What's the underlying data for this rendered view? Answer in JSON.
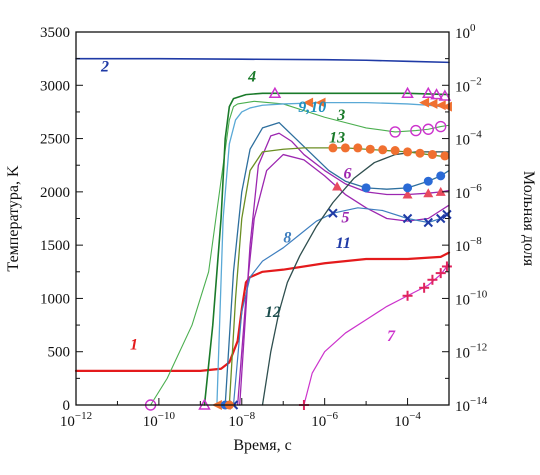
{
  "chart_data": {
    "type": "line",
    "title": "",
    "xlabel": "Время, с",
    "ylabel": "Температура, K",
    "y2label": "Мольная доля",
    "x_scale": "log",
    "xlim_exp": [
      -12,
      -3
    ],
    "ylim": [
      0,
      3500
    ],
    "y2_scale": "log",
    "y2lim_exp": [
      -14,
      0
    ],
    "x_ticks": [
      {
        "base": "10",
        "exp": "−12"
      },
      {
        "base": "10",
        "exp": "−10"
      },
      {
        "base": "10",
        "exp": "−8"
      },
      {
        "base": "10",
        "exp": "−6"
      },
      {
        "base": "10",
        "exp": "−4"
      }
    ],
    "x_tick_exps": [
      -12,
      -10,
      -8,
      -6,
      -4
    ],
    "y_ticks": [
      "0",
      "500",
      "1000",
      "1500",
      "2000",
      "2500",
      "3000",
      "3500"
    ],
    "y_tick_values": [
      0,
      500,
      1000,
      1500,
      2000,
      2500,
      3000,
      3500
    ],
    "y2_ticks": [
      {
        "base": "10",
        "exp": "0"
      },
      {
        "base": "10",
        "exp": "−2"
      },
      {
        "base": "10",
        "exp": "−4"
      },
      {
        "base": "10",
        "exp": "−6"
      },
      {
        "base": "10",
        "exp": "−8"
      },
      {
        "base": "10",
        "exp": "−10"
      },
      {
        "base": "10",
        "exp": "−12"
      },
      {
        "base": "10",
        "exp": "−14"
      }
    ],
    "y2_tick_exps": [
      0,
      -2,
      -4,
      -6,
      -8,
      -10,
      -12,
      -14
    ],
    "grid": false,
    "legend": "none",
    "series": [
      {
        "label": "1",
        "axis": "left",
        "color": "#e41a1c",
        "width": 2.2,
        "marker": "none",
        "x": [
          -12,
          -9,
          -8.5,
          -8.3,
          -8.1,
          -8,
          -7.9,
          -7.8,
          -7.5,
          -7,
          -6,
          -5,
          -4,
          -3.2,
          -3
        ],
        "y": [
          320,
          320,
          340,
          400,
          600,
          900,
          1150,
          1200,
          1250,
          1270,
          1330,
          1370,
          1370,
          1390,
          1430
        ],
        "label_at": {
          "x": -10.6,
          "y": 520
        }
      },
      {
        "label": "2",
        "axis": "left",
        "color": "#1f3aa6",
        "width": 1.6,
        "marker": "none",
        "x": [
          -12,
          -10,
          -8,
          -6,
          -5,
          -4,
          -3
        ],
        "y": [
          3250,
          3250,
          3245,
          3240,
          3235,
          3225,
          3215
        ],
        "label_at": {
          "x": -11.3,
          "y": 3130
        }
      },
      {
        "label": "3",
        "axis": "right",
        "color": "#4caf50",
        "width": 1.1,
        "marker": "circle_open",
        "marker_color": "#cc33cc",
        "x": [
          -10.2,
          -9.8,
          -9.2,
          -8.8,
          -8.45,
          -8.3,
          -8.2,
          -8.1,
          -7.7,
          -7,
          -6,
          -5,
          -4.3,
          -3.8,
          -3.5,
          -3.2,
          -3
        ],
        "y": [
          -14,
          -13,
          -11,
          -9,
          -5,
          -3.3,
          -2.8,
          -2.7,
          -2.6,
          -2.7,
          -3.2,
          -3.6,
          -3.75,
          -3.7,
          -3.65,
          -3.55,
          -3.5
        ],
        "marker_x": [
          -10.2,
          -4.3,
          -3.8,
          -3.5,
          -3.2
        ],
        "marker_y": [
          -14,
          -3.75,
          -3.7,
          -3.65,
          -3.55
        ],
        "label_color": "#1a7a2a",
        "label_at": {
          "x": -5.6,
          "y2": -3.3
        }
      },
      {
        "label": "4",
        "axis": "right",
        "color": "#1a7a2a",
        "width": 1.6,
        "marker": "triangle_open",
        "marker_color": "#cc33cc",
        "x": [
          -8.9,
          -8.7,
          -8.5,
          -8.4,
          -8.3,
          -8.2,
          -7.9,
          -7.5,
          -6,
          -4,
          -3
        ],
        "y": [
          -14,
          -11,
          -7,
          -4,
          -2.8,
          -2.5,
          -2.35,
          -2.3,
          -2.3,
          -2.3,
          -2.35
        ],
        "marker_x": [
          -8.9,
          -7.2,
          -4,
          -3.5,
          -3.3,
          -3.1
        ],
        "marker_y": [
          -14,
          -2.3,
          -2.3,
          -2.3,
          -2.35,
          -2.4
        ],
        "label_color": "#1a7a2a",
        "label_at": {
          "x": -7.75,
          "y2": -1.85
        }
      },
      {
        "label": "5",
        "axis": "right",
        "color": "#9c27b0",
        "width": 1.3,
        "marker": "none",
        "x": [
          -8.1,
          -7.9,
          -7.7,
          -7.4,
          -7,
          -6.5,
          -6,
          -5.5,
          -5,
          -4.5,
          -4,
          -3.5,
          -3.2,
          -3
        ],
        "y": [
          -14,
          -10,
          -7,
          -5.2,
          -4.6,
          -4.8,
          -5.4,
          -6.1,
          -6.6,
          -7,
          -7.1,
          -7,
          -6.7,
          -6.5
        ],
        "label_color": "#9c27b0",
        "label_at": {
          "x": -5.5,
          "y2": -7.15
        }
      },
      {
        "label": "6",
        "axis": "right",
        "color": "#9c27b0",
        "width": 1.3,
        "marker": "triangle_filled",
        "marker_color": "#e84a5f",
        "x": [
          -8.05,
          -7.8,
          -7.6,
          -7.3,
          -7.1,
          -6.8,
          -6.5,
          -6,
          -5.5,
          -5,
          -4.5,
          -4,
          -3.5,
          -3.2,
          -3
        ],
        "y": [
          -14,
          -8,
          -5,
          -3.9,
          -3.8,
          -4.1,
          -4.6,
          -5.2,
          -5.7,
          -6,
          -6.1,
          -6.1,
          -6.05,
          -6,
          -5.95
        ],
        "marker_x": [
          -5.7,
          -4,
          -3.5,
          -3.2
        ],
        "marker_y": [
          -5.8,
          -6.1,
          -6.05,
          -6
        ],
        "label_color": "#9c27b0",
        "label_at": {
          "x": -5.45,
          "y2": -5.5
        }
      },
      {
        "label": "7",
        "axis": "right",
        "color": "#cc33cc",
        "width": 1.2,
        "marker": "plus",
        "marker_color": "#e0245e",
        "x": [
          -6.5,
          -6.3,
          -6,
          -5.5,
          -5,
          -4.5,
          -4,
          -3.5,
          -3.2,
          -3
        ],
        "y": [
          -14,
          -12.8,
          -12,
          -11.3,
          -10.8,
          -10.3,
          -9.9,
          -9.5,
          -9.1,
          -8.7
        ],
        "marker_x": [
          -6.5,
          -4,
          -3.6,
          -3.4,
          -3.2,
          -3.05
        ],
        "marker_y": [
          -14,
          -9.9,
          -9.6,
          -9.3,
          -9.05,
          -8.8
        ],
        "label_color": "#cc33cc",
        "label_at": {
          "x": -4.4,
          "y2": -11.6
        }
      },
      {
        "label": "8",
        "axis": "right",
        "color": "#3f7fbf",
        "width": 1.2,
        "marker": "x",
        "marker_color": "#1f3aa6",
        "x": [
          -8.2,
          -8.0,
          -7.8,
          -7.5,
          -7.2,
          -7,
          -6.6,
          -6.2,
          -5.8,
          -5.2,
          -4.6,
          -4,
          -3.5,
          -3.2,
          -3
        ],
        "y": [
          -14,
          -10.5,
          -9.2,
          -8.6,
          -8.3,
          -8.1,
          -7.6,
          -7.1,
          -6.8,
          -6.6,
          -6.7,
          -7,
          -7.15,
          -7,
          -6.8
        ],
        "marker_x": [
          -8.2,
          -5.8,
          -4,
          -3.5,
          -3.2,
          -3.05
        ],
        "marker_y": [
          -14,
          -6.8,
          -7,
          -7.15,
          -7,
          -6.85
        ],
        "label_color": "#3f7fbf",
        "label_at": {
          "x": -6.9,
          "y2": -7.9
        }
      },
      {
        "label": "9,10",
        "axis": "right",
        "color": "#5aa9d6",
        "width": 1.3,
        "marker": "tri_left_filled",
        "marker_color": "#f07030",
        "x": [
          -8.6,
          -8.45,
          -8.3,
          -8.15,
          -8,
          -7.8,
          -7.5,
          -7,
          -6,
          -5,
          -4,
          -3.5,
          -3.2,
          -3
        ],
        "y": [
          -14,
          -7,
          -4.2,
          -3.3,
          -3.0,
          -2.85,
          -2.75,
          -2.7,
          -2.65,
          -2.65,
          -2.7,
          -2.75,
          -2.8,
          -2.85
        ],
        "marker_x": [
          -8.6,
          -6.4,
          -6.1,
          -3.6,
          -3.4,
          -3.2,
          -3.05
        ],
        "marker_y": [
          -14,
          -2.65,
          -2.65,
          -2.65,
          -2.7,
          -2.75,
          -2.8
        ],
        "label_color": "#1f8fbf",
        "label_at": {
          "x": -6.3,
          "y2": -3.0
        }
      },
      {
        "label": "11",
        "axis": "right",
        "color": "#2e6f9e",
        "width": 1.3,
        "marker": "dot",
        "marker_color": "#2a6ad6",
        "x": [
          -8.4,
          -8.2,
          -8.0,
          -7.8,
          -7.5,
          -7.1,
          -6.7,
          -6.3,
          -5.9,
          -5.5,
          -5,
          -4.5,
          -4,
          -3.5,
          -3.2,
          -3
        ],
        "y": [
          -14,
          -9,
          -6,
          -4.4,
          -3.6,
          -3.4,
          -4,
          -4.6,
          -5.2,
          -5.6,
          -5.85,
          -5.9,
          -5.85,
          -5.6,
          -5.4,
          -5.2
        ],
        "marker_x": [
          -8.4,
          -5.0,
          -4.0,
          -3.5,
          -3.2
        ],
        "marker_y": [
          -14,
          -5.85,
          -5.85,
          -5.6,
          -5.4
        ],
        "label_color": "#1f3aa6",
        "label_at": {
          "x": -5.55,
          "y2": -8.1
        }
      },
      {
        "label": "12",
        "axis": "right",
        "color": "#2f4f4f",
        "width": 1.3,
        "marker": "none",
        "x": [
          -7.5,
          -7.3,
          -7.1,
          -6.9,
          -6.6,
          -6.2,
          -5.8,
          -5.3,
          -4.8,
          -4.3,
          -3.8,
          -3.4,
          -3
        ],
        "y": [
          -14,
          -12,
          -10.5,
          -9.4,
          -8.4,
          -7.3,
          -6.4,
          -5.5,
          -4.9,
          -4.6,
          -4.5,
          -4.5,
          -4.5
        ],
        "label_color": "#1b4d4d",
        "label_at": {
          "x": -7.25,
          "y2": -10.7
        }
      },
      {
        "label": "13",
        "axis": "right",
        "color": "#6b8e23",
        "width": 1.3,
        "marker": "dot",
        "marker_color": "#f07030",
        "x": [
          -8.3,
          -8.15,
          -8.0,
          -7.8,
          -7.5,
          -7,
          -6.5,
          -6,
          -5.5,
          -5,
          -4.5,
          -4,
          -3.5,
          -3
        ],
        "y": [
          -14,
          -10,
          -7,
          -5.2,
          -4.5,
          -4.4,
          -4.35,
          -4.35,
          -4.35,
          -4.4,
          -4.45,
          -4.5,
          -4.6,
          -4.7
        ],
        "marker_x": [
          -8.3,
          -5.8,
          -5.5,
          -5.2,
          -4.9,
          -4.6,
          -4.3,
          -4.0,
          -3.7,
          -3.4,
          -3.1
        ],
        "marker_y": [
          -14,
          -4.35,
          -4.35,
          -4.35,
          -4.4,
          -4.42,
          -4.45,
          -4.5,
          -4.55,
          -4.6,
          -4.65
        ],
        "label_color": "#1a7a2a",
        "label_at": {
          "x": -5.7,
          "y2": -4.15
        }
      }
    ]
  }
}
